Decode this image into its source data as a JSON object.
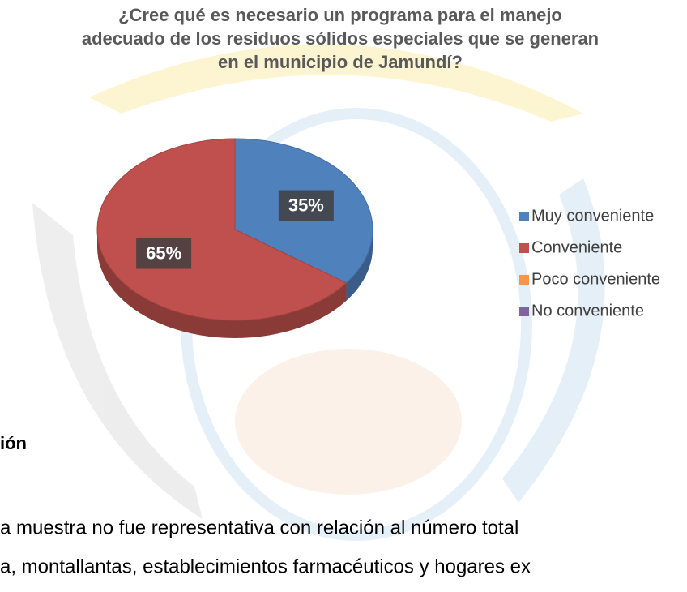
{
  "chart_data": {
    "type": "pie",
    "title": "¿Cree qué es necesario un programa para el manejo adecuado de los residuos sólidos especiales que se generan en el municipio de Jamundí?",
    "categories": [
      "Muy conveniente",
      "Conveniente",
      "Poco conveniente",
      "No conveniente"
    ],
    "values": [
      35,
      65,
      0,
      0
    ],
    "value_labels": [
      "35%",
      "65%",
      null,
      null
    ],
    "colors": [
      "#4f81bd",
      "#c0504d",
      "#f79646",
      "#8064a2"
    ],
    "legend": "right"
  },
  "document": {
    "heading": "ión",
    "lines": [
      "a muestra no fue representativa con relación al número total",
      "a, montallantas, establecimientos farmacéuticos y hogares ex"
    ]
  }
}
